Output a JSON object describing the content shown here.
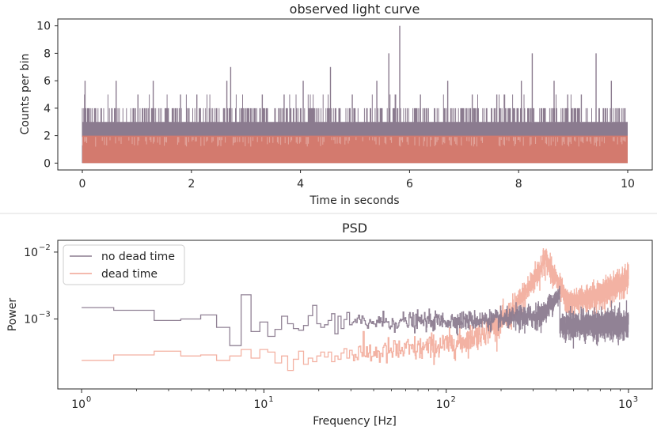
{
  "chart_data": [
    {
      "type": "line",
      "title": "observed light curve",
      "xlabel": "Time in seconds",
      "ylabel": "Counts per bin",
      "xlim": [
        -0.45,
        10.45
      ],
      "ylim": [
        -0.5,
        10.5
      ],
      "xticks": [
        0,
        2,
        4,
        6,
        8,
        10
      ],
      "yticks": [
        0,
        2,
        4,
        6,
        8,
        10
      ],
      "grid": false,
      "series": [
        {
          "name": "no dead time",
          "color": "#8b7b8f",
          "baseline_range": [
            0,
            3
          ],
          "common_peak": 4,
          "spikes": [
            {
              "x": 0.05,
              "y": 6
            },
            {
              "x": 0.62,
              "y": 6
            },
            {
              "x": 1.02,
              "y": 5
            },
            {
              "x": 1.3,
              "y": 6
            },
            {
              "x": 1.8,
              "y": 5
            },
            {
              "x": 2.1,
              "y": 5
            },
            {
              "x": 2.65,
              "y": 6
            },
            {
              "x": 2.72,
              "y": 7
            },
            {
              "x": 3.3,
              "y": 5
            },
            {
              "x": 3.7,
              "y": 5
            },
            {
              "x": 4.05,
              "y": 6
            },
            {
              "x": 4.55,
              "y": 7
            },
            {
              "x": 4.95,
              "y": 5
            },
            {
              "x": 5.4,
              "y": 6
            },
            {
              "x": 5.62,
              "y": 8
            },
            {
              "x": 5.82,
              "y": 10
            },
            {
              "x": 6.2,
              "y": 5
            },
            {
              "x": 6.7,
              "y": 6
            },
            {
              "x": 7.15,
              "y": 5
            },
            {
              "x": 7.6,
              "y": 5
            },
            {
              "x": 8.05,
              "y": 6
            },
            {
              "x": 8.25,
              "y": 8
            },
            {
              "x": 8.65,
              "y": 6
            },
            {
              "x": 8.9,
              "y": 5
            },
            {
              "x": 9.15,
              "y": 5
            },
            {
              "x": 9.42,
              "y": 8
            },
            {
              "x": 9.7,
              "y": 6
            }
          ]
        },
        {
          "name": "dead time",
          "color": "#d9796b",
          "baseline_range": [
            0,
            2
          ]
        }
      ]
    },
    {
      "type": "line",
      "title": "PSD",
      "xlabel": "Frequency [Hz]",
      "ylabel": "Power",
      "xscale": "log",
      "yscale": "log",
      "xlim": [
        0.74,
        1350
      ],
      "ylim": [
        9e-05,
        0.015
      ],
      "xticks": [
        1,
        10,
        100,
        1000
      ],
      "xtick_labels": [
        {
          "base": "10",
          "exp": "0"
        },
        {
          "base": "10",
          "exp": "1"
        },
        {
          "base": "10",
          "exp": "2"
        },
        {
          "base": "10",
          "exp": "3"
        }
      ],
      "yticks": [
        0.001,
        0.01
      ],
      "ytick_labels": [
        {
          "base": "10",
          "exp": "−3"
        },
        {
          "base": "10",
          "exp": "−2"
        }
      ],
      "legend": {
        "position": "top-left"
      },
      "series": [
        {
          "name": "no dead time",
          "color": "#8b7b8f",
          "step_points": [
            [
              1.0,
              0.00148
            ],
            [
              1.5,
              0.00135
            ],
            [
              2.5,
              0.00095
            ],
            [
              3.5,
              0.001
            ],
            [
              4.5,
              0.00115
            ],
            [
              5.5,
              0.00075
            ],
            [
              6.5,
              0.0004
            ],
            [
              7.5,
              0.0023
            ],
            [
              8.5,
              0.00065
            ],
            [
              9.5,
              0.0009
            ],
            [
              10.5,
              0.00055
            ],
            [
              11.5,
              0.0007
            ],
            [
              12.5,
              0.0011
            ],
            [
              13.5,
              0.00085
            ],
            [
              14.5,
              0.00072
            ],
            [
              15.5,
              0.00068
            ],
            [
              16.5,
              0.0008
            ],
            [
              17.5,
              0.00112
            ],
            [
              18.5,
              0.0016
            ],
            [
              19.5,
              0.00085
            ],
            [
              20.5,
              0.00075
            ],
            [
              21.5,
              0.00082
            ],
            [
              22.5,
              0.00095
            ],
            [
              23.5,
              0.0012
            ],
            [
              24.5,
              0.0006
            ],
            [
              25.5,
              0.0011
            ],
            [
              26.5,
              0.00072
            ],
            [
              27.5,
              0.00098
            ],
            [
              28.5,
              0.00125
            ],
            [
              29.5,
              0.00082
            ],
            [
              30.5,
              0.00088
            ]
          ],
          "segments": [
            {
              "f0": 31,
              "f1": 230,
              "y0": 0.0009,
              "y1": 0.001,
              "scatter_dex": 0.07
            },
            {
              "f0": 230,
              "f1": 330,
              "y0": 0.001,
              "y1": 0.00115,
              "scatter_dex": 0.09
            },
            {
              "f0": 330,
              "f1": 420,
              "y0": 0.00115,
              "y1": 0.0024,
              "scatter_dex": 0.08
            },
            {
              "f0": 420,
              "f1": 1000,
              "y0": 0.0008,
              "y1": 0.00082,
              "scatter_dex": 0.1
            }
          ]
        },
        {
          "name": "dead time",
          "color": "#f1a493",
          "step_points": [
            [
              1.0,
              0.00024
            ],
            [
              1.5,
              0.00029
            ],
            [
              2.5,
              0.00033
            ],
            [
              3.5,
              0.00028
            ],
            [
              4.5,
              0.00029
            ],
            [
              5.5,
              0.00024
            ],
            [
              6.5,
              0.00028
            ],
            [
              7.5,
              0.00035
            ],
            [
              8.5,
              0.00026
            ],
            [
              9.5,
              0.00035
            ],
            [
              10.5,
              0.00032
            ],
            [
              11.5,
              0.00022
            ],
            [
              12.5,
              0.00028
            ],
            [
              13.5,
              0.00017
            ],
            [
              14.5,
              0.00025
            ],
            [
              15.5,
              0.00033
            ],
            [
              16.5,
              0.00021
            ],
            [
              17.5,
              0.00026
            ],
            [
              18.5,
              0.00023
            ],
            [
              19.5,
              0.00028
            ],
            [
              20.5,
              0.00032
            ],
            [
              21.5,
              0.00027
            ],
            [
              22.5,
              0.00032
            ],
            [
              23.5,
              0.00023
            ],
            [
              24.5,
              0.00028
            ],
            [
              25.5,
              0.00025
            ],
            [
              26.5,
              0.00031
            ],
            [
              27.5,
              0.00036
            ],
            [
              28.5,
              0.00026
            ],
            [
              29.5,
              0.00034
            ],
            [
              30.5,
              0.00029
            ]
          ],
          "segments": [
            {
              "f0": 31,
              "f1": 120,
              "y0": 0.0003,
              "y1": 0.00045,
              "scatter_dex": 0.1
            },
            {
              "f0": 120,
              "f1": 220,
              "y0": 0.00045,
              "y1": 0.0011,
              "scatter_dex": 0.1
            },
            {
              "f0": 220,
              "f1": 350,
              "y0": 0.0011,
              "y1": 0.008,
              "scatter_dex": 0.11
            },
            {
              "f0": 350,
              "f1": 460,
              "y0": 0.008,
              "y1": 0.0017,
              "scatter_dex": 0.09
            },
            {
              "f0": 460,
              "f1": 1000,
              "y0": 0.0017,
              "y1": 0.0038,
              "scatter_dex": 0.09
            }
          ]
        }
      ]
    }
  ]
}
